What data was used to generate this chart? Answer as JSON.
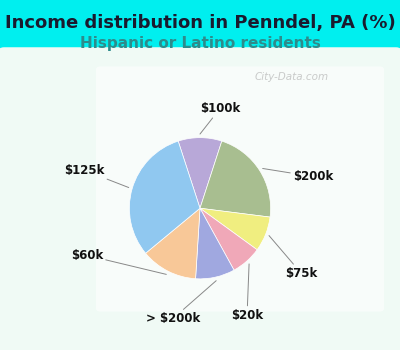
{
  "title": "Income distribution in Penndel, PA (%)",
  "subtitle": "Hispanic or Latino residents",
  "background_color": "#00EFEF",
  "title_color": "#1a1a2e",
  "subtitle_color": "#2e8b8b",
  "slices": [
    {
      "label": "$100k",
      "value": 10,
      "color": "#b8a8d8"
    },
    {
      "label": "$200k",
      "value": 22,
      "color": "#a8be90"
    },
    {
      "label": "$75k",
      "value": 8,
      "color": "#f0ee80"
    },
    {
      "label": "$20k",
      "value": 7,
      "color": "#f0a8b8"
    },
    {
      "label": "> $200k",
      "value": 9,
      "color": "#a0a8e0"
    },
    {
      "label": "$60k",
      "value": 13,
      "color": "#f8c898"
    },
    {
      "label": "$125k",
      "value": 31,
      "color": "#90c8f0"
    }
  ],
  "title_fontsize": 13,
  "subtitle_fontsize": 11,
  "label_fontsize": 8.5,
  "watermark": "City-Data.com",
  "startangle": 108
}
